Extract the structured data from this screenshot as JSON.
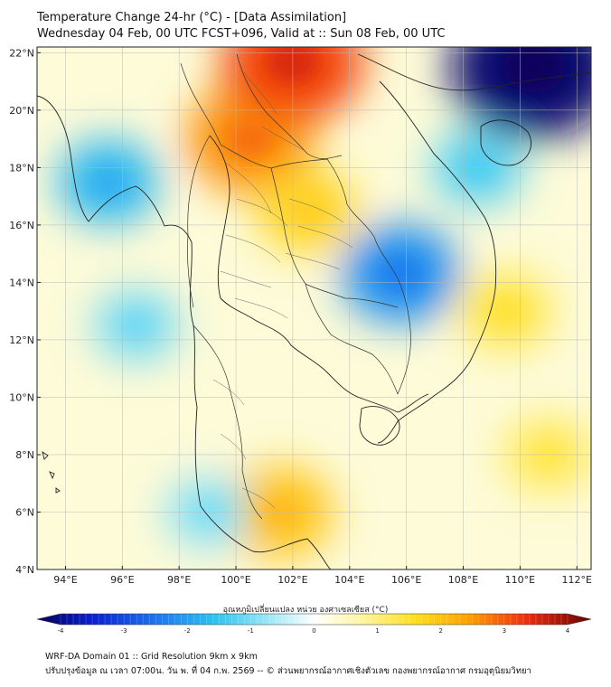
{
  "header": {
    "title": "Temperature Change 24-hr (°C) - [Data Assimilation]",
    "subtitle": "Wednesday 04 Feb, 00 UTC FCST+096, Valid at :: Sun 08 Feb, 00 UTC"
  },
  "map": {
    "lat_labels": [
      "22°N",
      "20°N",
      "18°N",
      "16°N",
      "14°N",
      "12°N",
      "10°N",
      "8°N",
      "6°N",
      "4°N"
    ],
    "lon_labels": [
      "94°E",
      "96°E",
      "98°E",
      "100°E",
      "102°E",
      "104°E",
      "106°E",
      "108°E",
      "110°E",
      "112°E"
    ],
    "lat_values": [
      22,
      20,
      18,
      16,
      14,
      12,
      10,
      8,
      6,
      4
    ],
    "lon_values": [
      94,
      96,
      98,
      100,
      102,
      104,
      106,
      108,
      110,
      112
    ],
    "extent": {
      "lon_min": 93.0,
      "lon_max": 112.5,
      "lat_min": 4.0,
      "lat_max": 22.2
    },
    "anomaly_regions": [
      {
        "name": "bay-of-bengal-cool",
        "lon": 95.5,
        "lat": 17.5,
        "value": -1.2
      },
      {
        "name": "andaman-sea-cool",
        "lon": 96.5,
        "lat": 12.5,
        "value": -0.6
      },
      {
        "name": "northern-thailand-warm",
        "lon": 100.5,
        "lat": 19.0,
        "value": 2.2
      },
      {
        "name": "laos-warm",
        "lon": 102.0,
        "lat": 21.7,
        "value": 2.8
      },
      {
        "name": "northeast-thailand-warm",
        "lon": 102.5,
        "lat": 16.5,
        "value": 1.2
      },
      {
        "name": "cambodia-cool",
        "lon": 105.8,
        "lat": 14.3,
        "value": -1.8
      },
      {
        "name": "south-china-sea-cold",
        "lon": 110.5,
        "lat": 21.5,
        "value": -3.8
      },
      {
        "name": "gulf-of-tonkin-cool",
        "lon": 108.5,
        "lat": 18.0,
        "value": -0.8
      },
      {
        "name": "malaya-warm",
        "lon": 101.5,
        "lat": 6.0,
        "value": 1.5
      },
      {
        "name": "vietnam-coast-warm",
        "lon": 109.5,
        "lat": 13.0,
        "value": 0.9
      },
      {
        "name": "southern-sea-cool",
        "lon": 99.0,
        "lat": 6.0,
        "value": -0.5
      },
      {
        "name": "southeast-sea-warm",
        "lon": 111.0,
        "lat": 8.0,
        "value": 0.8
      }
    ]
  },
  "colorbar": {
    "title": "อุณหภูมิเปลี่ยนแปลง หน่วย องศาเซลเซียส (°C)",
    "ticks": [
      "-4",
      "-3",
      "-2",
      "-1",
      "0",
      "1",
      "2",
      "3",
      "4"
    ],
    "tick_values": [
      -4,
      -3,
      -2,
      -1,
      0,
      1,
      2,
      3,
      4
    ]
  },
  "footer": {
    "line1": "WRF-DA Domain 01 :: Grid Resolution 9km x 9km",
    "line2": "ปรับปรุงข้อมูล ณ เวลา 07:00น. วัน พ. ที่ 04 ก.พ. 2569 -- © ส่วนพยากรณ์อากาศเชิงตัวเลข กองพยากรณ์อากาศ กรมอุตุนิยมวิทยา"
  }
}
